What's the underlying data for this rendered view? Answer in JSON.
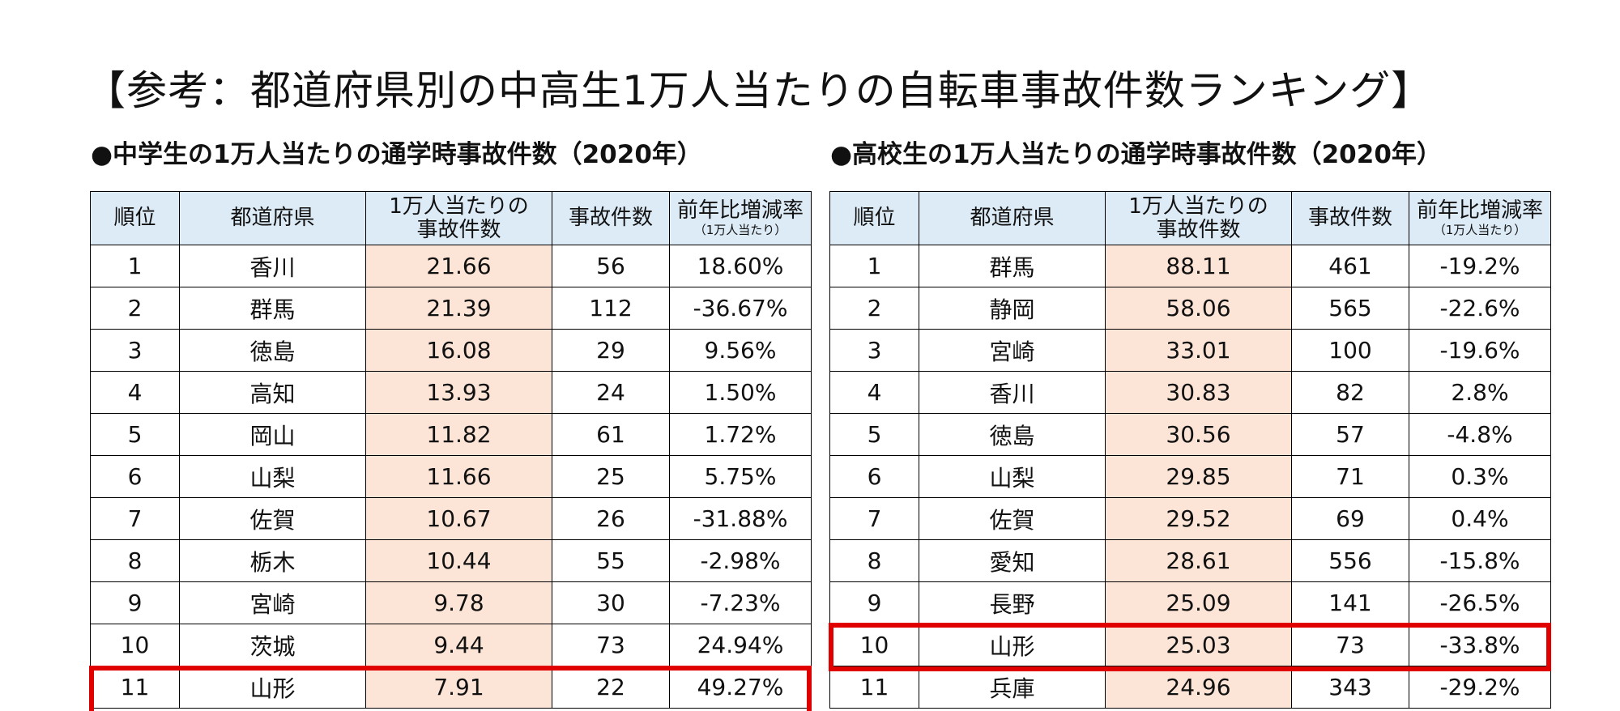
{
  "main_title": "【参考：都道府県別の中高生1万人当たりの自転車事故件数ランキング】",
  "junior": {
    "title": "●中学生の1万人当たりの通学時事故件数（2020年）",
    "headers": {
      "rank": "順位",
      "pref": "都道府県",
      "per_line1": "1万人当たりの",
      "per_line2": "事故件数",
      "count": "事故件数",
      "change": "前年比増減率",
      "change_sub": "（1万人当たり）"
    },
    "rows": [
      {
        "rank": "1",
        "pref": "香川",
        "per": "21.66",
        "count": "56",
        "change": "18.60%"
      },
      {
        "rank": "2",
        "pref": "群馬",
        "per": "21.39",
        "count": "112",
        "change": "-36.67%"
      },
      {
        "rank": "3",
        "pref": "徳島",
        "per": "16.08",
        "count": "29",
        "change": "9.56%"
      },
      {
        "rank": "4",
        "pref": "高知",
        "per": "13.93",
        "count": "24",
        "change": "1.50%"
      },
      {
        "rank": "5",
        "pref": "岡山",
        "per": "11.82",
        "count": "61",
        "change": "1.72%"
      },
      {
        "rank": "6",
        "pref": "山梨",
        "per": "11.66",
        "count": "25",
        "change": "5.75%"
      },
      {
        "rank": "7",
        "pref": "佐賀",
        "per": "10.67",
        "count": "26",
        "change": "-31.88%"
      },
      {
        "rank": "8",
        "pref": "栃木",
        "per": "10.44",
        "count": "55",
        "change": "-2.98%"
      },
      {
        "rank": "9",
        "pref": "宮崎",
        "per": "9.78",
        "count": "30",
        "change": "-7.23%"
      },
      {
        "rank": "10",
        "pref": "茨城",
        "per": "9.44",
        "count": "73",
        "change": "24.94%"
      },
      {
        "rank": "11",
        "pref": "山形",
        "per": "7.91",
        "count": "22",
        "change": "49.27%"
      }
    ]
  },
  "senior": {
    "title": "●高校生の1万人当たりの通学時事故件数（2020年）",
    "headers": {
      "rank": "順位",
      "pref": "都道府県",
      "per_line1": "1万人当たりの",
      "per_line2": "事故件数",
      "count": "事故件数",
      "change": "前年比増減率",
      "change_sub": "（1万人当たり）"
    },
    "rows": [
      {
        "rank": "1",
        "pref": "群馬",
        "per": "88.11",
        "count": "461",
        "change": "-19.2%"
      },
      {
        "rank": "2",
        "pref": "静岡",
        "per": "58.06",
        "count": "565",
        "change": "-22.6%"
      },
      {
        "rank": "3",
        "pref": "宮崎",
        "per": "33.01",
        "count": "100",
        "change": "-19.6%"
      },
      {
        "rank": "4",
        "pref": "香川",
        "per": "30.83",
        "count": "82",
        "change": "2.8%"
      },
      {
        "rank": "5",
        "pref": "徳島",
        "per": "30.56",
        "count": "57",
        "change": "-4.8%"
      },
      {
        "rank": "6",
        "pref": "山梨",
        "per": "29.85",
        "count": "71",
        "change": "0.3%"
      },
      {
        "rank": "7",
        "pref": "佐賀",
        "per": "29.52",
        "count": "69",
        "change": "0.4%"
      },
      {
        "rank": "8",
        "pref": "愛知",
        "per": "28.61",
        "count": "556",
        "change": "-15.8%"
      },
      {
        "rank": "9",
        "pref": "長野",
        "per": "25.09",
        "count": "141",
        "change": "-26.5%"
      },
      {
        "rank": "10",
        "pref": "山形",
        "per": "25.03",
        "count": "73",
        "change": "-33.8%"
      },
      {
        "rank": "11",
        "pref": "兵庫",
        "per": "24.96",
        "count": "343",
        "change": "-29.2%"
      }
    ]
  },
  "highlight_color": "#e00000",
  "header_bg_color": "#ddebf7",
  "per_10k_col_color": "#fce4d6"
}
